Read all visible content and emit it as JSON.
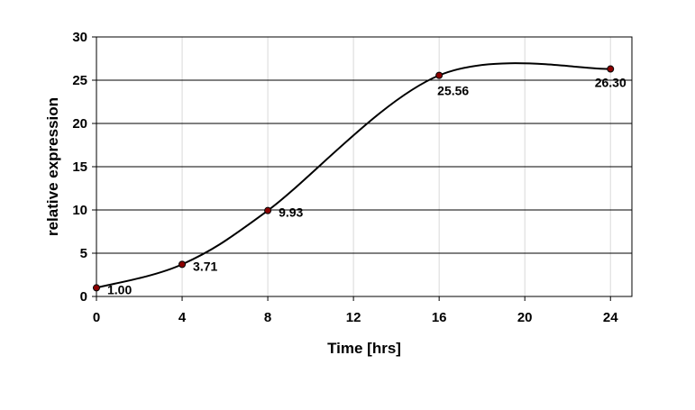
{
  "chart_data": {
    "type": "line",
    "title": "",
    "xlabel": "Time [hrs]",
    "ylabel": "relative expression",
    "x": [
      0,
      4,
      8,
      16,
      24
    ],
    "series": [
      {
        "values": [
          1.0,
          3.71,
          9.93,
          25.56,
          26.3
        ]
      }
    ],
    "data_labels": [
      "1.00",
      "3.71",
      "9.93",
      "25.56",
      "26.30"
    ],
    "xlim": [
      0,
      25
    ],
    "ylim": [
      0,
      30
    ],
    "x_ticks": [
      0,
      4,
      8,
      12,
      16,
      20,
      24
    ],
    "y_ticks": [
      0,
      5,
      10,
      15,
      20,
      25,
      30
    ],
    "smooth": true,
    "grid": {
      "horizontal": true,
      "vertical": true
    },
    "colors": {
      "line": "#000000",
      "marker_fill": "#8b0000",
      "marker_edge": "#000000",
      "grid_major": "#000000",
      "grid_minor": "#d9d9d9"
    }
  }
}
